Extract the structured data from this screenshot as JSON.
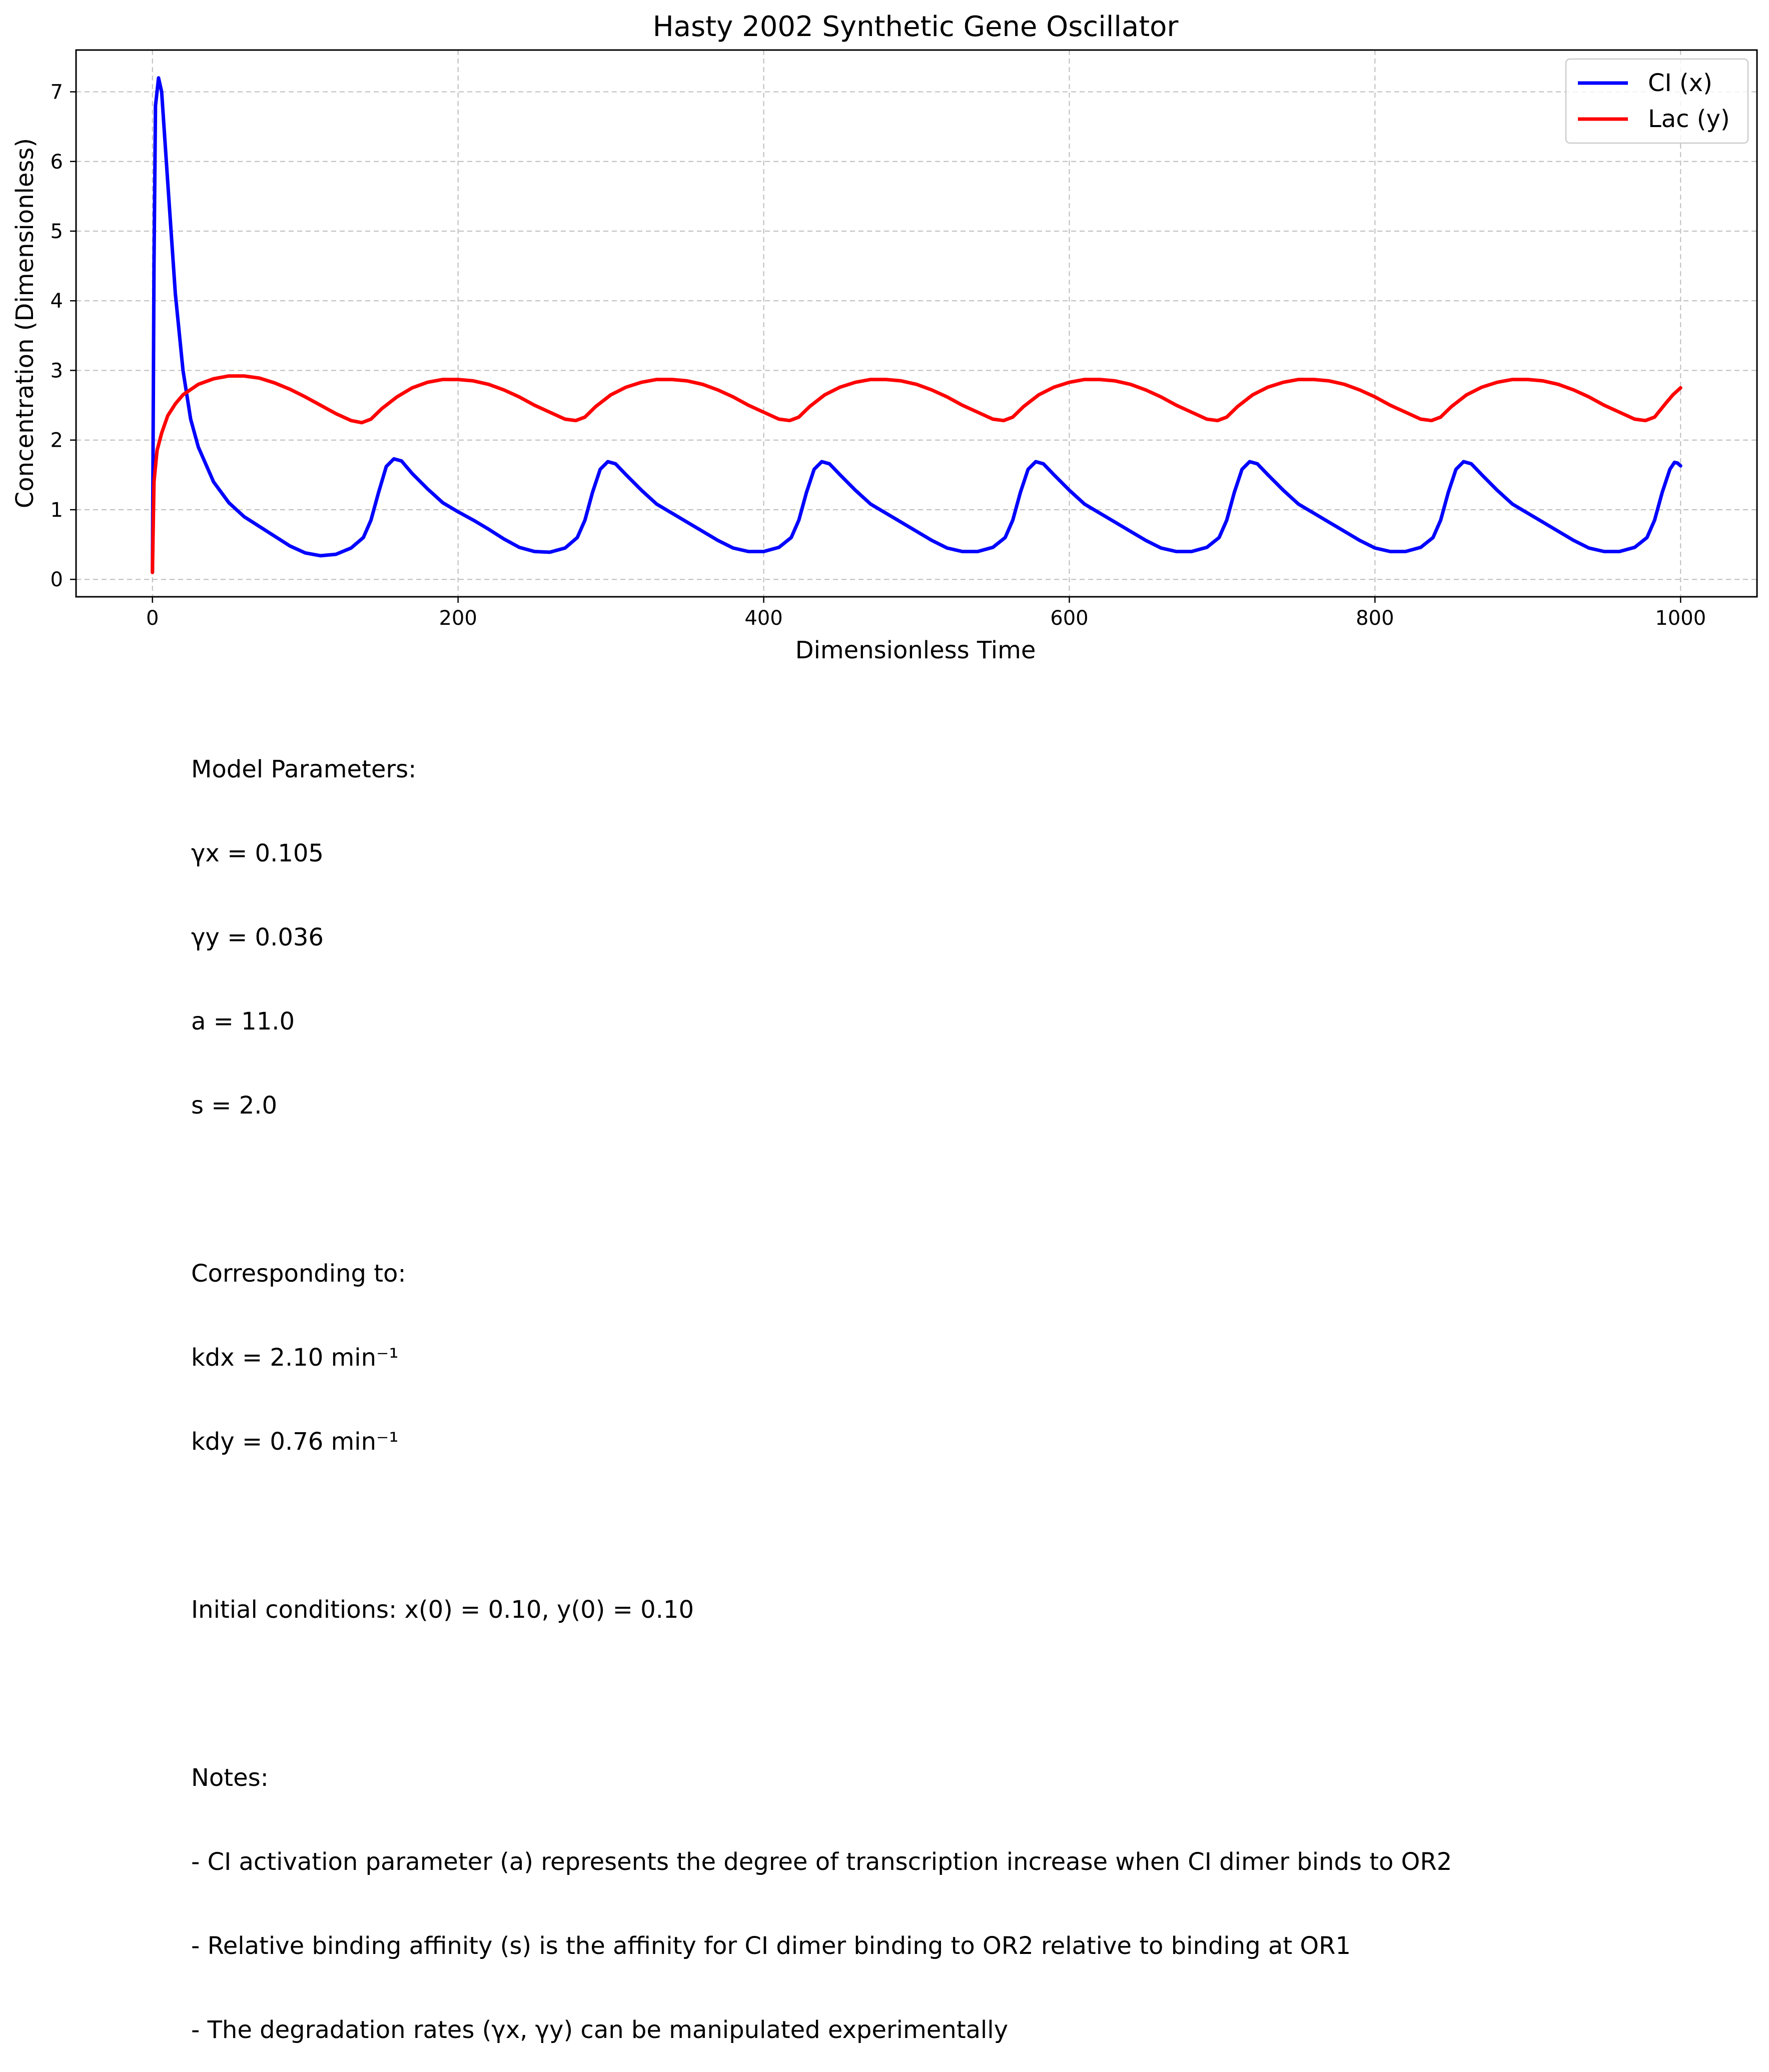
{
  "chart_data": {
    "type": "line",
    "title": "Hasty 2002 Synthetic Gene Oscillator",
    "xlabel": "Dimensionless Time",
    "ylabel": "Concentration (Dimensionless)",
    "xlim": [
      -50,
      1050
    ],
    "ylim": [
      -0.25,
      7.6
    ],
    "x_ticks": [
      0,
      200,
      400,
      600,
      800,
      1000
    ],
    "y_ticks": [
      0,
      1,
      2,
      3,
      4,
      5,
      6,
      7
    ],
    "grid": true,
    "legend_position": "top-right",
    "series": [
      {
        "name": "CI (x)",
        "color": "#0000ff",
        "points": [
          [
            0,
            0.1
          ],
          [
            1,
            4.5
          ],
          [
            2,
            6.8
          ],
          [
            4,
            7.2
          ],
          [
            6,
            7.0
          ],
          [
            10,
            5.7
          ],
          [
            15,
            4.1
          ],
          [
            20,
            3.0
          ],
          [
            25,
            2.3
          ],
          [
            30,
            1.9
          ],
          [
            40,
            1.4
          ],
          [
            50,
            1.1
          ],
          [
            60,
            0.9
          ],
          [
            70,
            0.76
          ],
          [
            80,
            0.62
          ],
          [
            90,
            0.48
          ],
          [
            100,
            0.38
          ],
          [
            110,
            0.34
          ],
          [
            120,
            0.36
          ],
          [
            130,
            0.45
          ],
          [
            138,
            0.6
          ],
          [
            143,
            0.85
          ],
          [
            148,
            1.25
          ],
          [
            153,
            1.62
          ],
          [
            158,
            1.73
          ],
          [
            163,
            1.7
          ],
          [
            170,
            1.52
          ],
          [
            180,
            1.3
          ],
          [
            190,
            1.1
          ],
          [
            200,
            0.97
          ],
          [
            210,
            0.85
          ],
          [
            220,
            0.72
          ],
          [
            230,
            0.58
          ],
          [
            240,
            0.46
          ],
          [
            250,
            0.4
          ],
          [
            260,
            0.39
          ],
          [
            270,
            0.45
          ],
          [
            278,
            0.6
          ],
          [
            283,
            0.85
          ],
          [
            288,
            1.25
          ],
          [
            293,
            1.58
          ],
          [
            298,
            1.69
          ],
          [
            303,
            1.66
          ],
          [
            310,
            1.5
          ],
          [
            320,
            1.28
          ],
          [
            330,
            1.08
          ],
          [
            340,
            0.95
          ],
          [
            350,
            0.82
          ],
          [
            360,
            0.69
          ],
          [
            370,
            0.56
          ],
          [
            380,
            0.45
          ],
          [
            390,
            0.4
          ],
          [
            400,
            0.4
          ],
          [
            410,
            0.46
          ],
          [
            418,
            0.6
          ],
          [
            423,
            0.85
          ],
          [
            428,
            1.25
          ],
          [
            433,
            1.58
          ],
          [
            438,
            1.69
          ],
          [
            443,
            1.66
          ],
          [
            450,
            1.5
          ],
          [
            460,
            1.28
          ],
          [
            470,
            1.08
          ],
          [
            480,
            0.95
          ],
          [
            490,
            0.82
          ],
          [
            500,
            0.69
          ],
          [
            510,
            0.56
          ],
          [
            520,
            0.45
          ],
          [
            530,
            0.4
          ],
          [
            540,
            0.4
          ],
          [
            550,
            0.46
          ],
          [
            558,
            0.6
          ],
          [
            563,
            0.85
          ],
          [
            568,
            1.25
          ],
          [
            573,
            1.58
          ],
          [
            578,
            1.69
          ],
          [
            583,
            1.66
          ],
          [
            590,
            1.5
          ],
          [
            600,
            1.28
          ],
          [
            610,
            1.08
          ],
          [
            620,
            0.95
          ],
          [
            630,
            0.82
          ],
          [
            640,
            0.69
          ],
          [
            650,
            0.56
          ],
          [
            660,
            0.45
          ],
          [
            670,
            0.4
          ],
          [
            680,
            0.4
          ],
          [
            690,
            0.46
          ],
          [
            698,
            0.6
          ],
          [
            703,
            0.85
          ],
          [
            708,
            1.25
          ],
          [
            713,
            1.58
          ],
          [
            718,
            1.69
          ],
          [
            723,
            1.66
          ],
          [
            730,
            1.5
          ],
          [
            740,
            1.28
          ],
          [
            750,
            1.08
          ],
          [
            760,
            0.95
          ],
          [
            770,
            0.82
          ],
          [
            780,
            0.69
          ],
          [
            790,
            0.56
          ],
          [
            800,
            0.45
          ],
          [
            810,
            0.4
          ],
          [
            820,
            0.4
          ],
          [
            830,
            0.46
          ],
          [
            838,
            0.6
          ],
          [
            843,
            0.85
          ],
          [
            848,
            1.25
          ],
          [
            853,
            1.58
          ],
          [
            858,
            1.69
          ],
          [
            863,
            1.66
          ],
          [
            870,
            1.5
          ],
          [
            880,
            1.28
          ],
          [
            890,
            1.08
          ],
          [
            900,
            0.95
          ],
          [
            910,
            0.82
          ],
          [
            920,
            0.69
          ],
          [
            930,
            0.56
          ],
          [
            940,
            0.45
          ],
          [
            950,
            0.4
          ],
          [
            960,
            0.4
          ],
          [
            970,
            0.46
          ],
          [
            978,
            0.6
          ],
          [
            983,
            0.85
          ],
          [
            988,
            1.25
          ],
          [
            993,
            1.58
          ],
          [
            996,
            1.68
          ],
          [
            998,
            1.67
          ],
          [
            1000,
            1.63
          ]
        ]
      },
      {
        "name": "Lac (y)",
        "color": "#ff0000",
        "points": [
          [
            0,
            0.1
          ],
          [
            1,
            1.4
          ],
          [
            3,
            1.85
          ],
          [
            6,
            2.1
          ],
          [
            10,
            2.35
          ],
          [
            15,
            2.52
          ],
          [
            20,
            2.65
          ],
          [
            30,
            2.8
          ],
          [
            40,
            2.88
          ],
          [
            50,
            2.92
          ],
          [
            60,
            2.92
          ],
          [
            70,
            2.89
          ],
          [
            80,
            2.82
          ],
          [
            90,
            2.73
          ],
          [
            100,
            2.62
          ],
          [
            110,
            2.5
          ],
          [
            120,
            2.38
          ],
          [
            130,
            2.28
          ],
          [
            137,
            2.25
          ],
          [
            143,
            2.3
          ],
          [
            150,
            2.45
          ],
          [
            160,
            2.62
          ],
          [
            170,
            2.75
          ],
          [
            180,
            2.83
          ],
          [
            190,
            2.87
          ],
          [
            200,
            2.87
          ],
          [
            210,
            2.85
          ],
          [
            220,
            2.8
          ],
          [
            230,
            2.72
          ],
          [
            240,
            2.62
          ],
          [
            250,
            2.5
          ],
          [
            260,
            2.4
          ],
          [
            270,
            2.3
          ],
          [
            277,
            2.28
          ],
          [
            283,
            2.33
          ],
          [
            290,
            2.48
          ],
          [
            300,
            2.65
          ],
          [
            310,
            2.76
          ],
          [
            320,
            2.83
          ],
          [
            330,
            2.87
          ],
          [
            340,
            2.87
          ],
          [
            350,
            2.85
          ],
          [
            360,
            2.8
          ],
          [
            370,
            2.72
          ],
          [
            380,
            2.62
          ],
          [
            390,
            2.5
          ],
          [
            400,
            2.4
          ],
          [
            410,
            2.3
          ],
          [
            417,
            2.28
          ],
          [
            423,
            2.33
          ],
          [
            430,
            2.48
          ],
          [
            440,
            2.65
          ],
          [
            450,
            2.76
          ],
          [
            460,
            2.83
          ],
          [
            470,
            2.87
          ],
          [
            480,
            2.87
          ],
          [
            490,
            2.85
          ],
          [
            500,
            2.8
          ],
          [
            510,
            2.72
          ],
          [
            520,
            2.62
          ],
          [
            530,
            2.5
          ],
          [
            540,
            2.4
          ],
          [
            550,
            2.3
          ],
          [
            557,
            2.28
          ],
          [
            563,
            2.33
          ],
          [
            570,
            2.48
          ],
          [
            580,
            2.65
          ],
          [
            590,
            2.76
          ],
          [
            600,
            2.83
          ],
          [
            610,
            2.87
          ],
          [
            620,
            2.87
          ],
          [
            630,
            2.85
          ],
          [
            640,
            2.8
          ],
          [
            650,
            2.72
          ],
          [
            660,
            2.62
          ],
          [
            670,
            2.5
          ],
          [
            680,
            2.4
          ],
          [
            690,
            2.3
          ],
          [
            697,
            2.28
          ],
          [
            703,
            2.33
          ],
          [
            710,
            2.48
          ],
          [
            720,
            2.65
          ],
          [
            730,
            2.76
          ],
          [
            740,
            2.83
          ],
          [
            750,
            2.87
          ],
          [
            760,
            2.87
          ],
          [
            770,
            2.85
          ],
          [
            780,
            2.8
          ],
          [
            790,
            2.72
          ],
          [
            800,
            2.62
          ],
          [
            810,
            2.5
          ],
          [
            820,
            2.4
          ],
          [
            830,
            2.3
          ],
          [
            837,
            2.28
          ],
          [
            843,
            2.33
          ],
          [
            850,
            2.48
          ],
          [
            860,
            2.65
          ],
          [
            870,
            2.76
          ],
          [
            880,
            2.83
          ],
          [
            890,
            2.87
          ],
          [
            900,
            2.87
          ],
          [
            910,
            2.85
          ],
          [
            920,
            2.8
          ],
          [
            930,
            2.72
          ],
          [
            940,
            2.62
          ],
          [
            950,
            2.5
          ],
          [
            960,
            2.4
          ],
          [
            970,
            2.3
          ],
          [
            977,
            2.28
          ],
          [
            983,
            2.33
          ],
          [
            990,
            2.52
          ],
          [
            995,
            2.65
          ],
          [
            1000,
            2.75
          ]
        ]
      }
    ]
  },
  "notes": {
    "lines": [
      "Model Parameters:",
      "γx = 0.105",
      "γy = 0.036",
      "a = 11.0",
      "s = 2.0",
      "",
      "Corresponding to:",
      "kdx = 2.10 min⁻¹",
      "kdy = 0.76 min⁻¹",
      "",
      "Initial conditions: x(0) = 0.10, y(0) = 0.10",
      "",
      "Notes:",
      "- CI activation parameter (a) represents the degree of transcription increase when CI dimer binds to OR2",
      "- Relative binding affinity (s) is the affinity for CI dimer binding to OR2 relative to binding at OR1",
      "- The degradation rates (γx, γy) can be manipulated experimentally"
    ]
  }
}
